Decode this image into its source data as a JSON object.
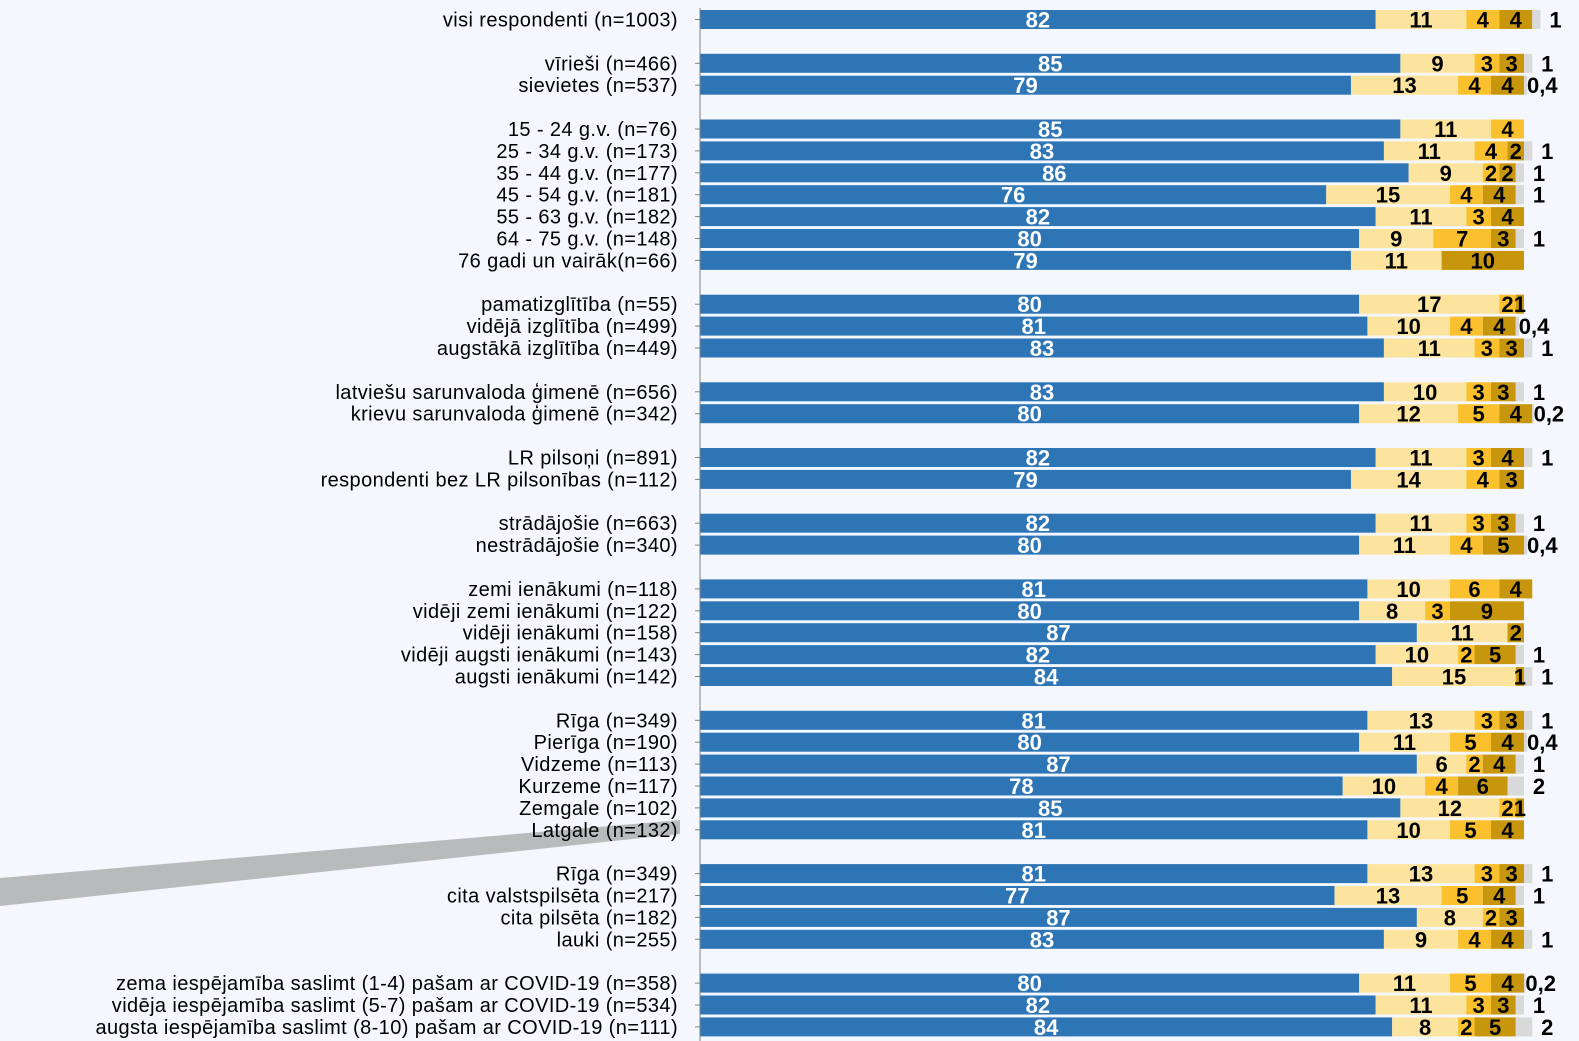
{
  "chart_data": {
    "type": "bar",
    "orientation": "horizontal",
    "stacked": true,
    "xlim": [
      0,
      100
    ],
    "grid": false,
    "legend": "none",
    "colors": [
      "#2e75b6",
      "#fde49e",
      "#fbc02d",
      "#c8960c",
      "#d9d9d9"
    ],
    "rows": [
      {
        "label": "visi respondenti (n=1003)",
        "group": 0,
        "values": [
          82,
          11,
          4,
          4,
          1
        ],
        "labels": [
          "82",
          "11",
          "4",
          "4",
          "1"
        ]
      },
      {
        "label": "vīrieši (n=466)",
        "group": 1,
        "values": [
          85,
          9,
          3,
          3,
          1
        ],
        "labels": [
          "85",
          "9",
          "3",
          "3",
          "1"
        ]
      },
      {
        "label": "sievietes (n=537)",
        "group": 1,
        "values": [
          79,
          13,
          4,
          4,
          0.4
        ],
        "labels": [
          "79",
          "13",
          "4",
          "4",
          "0,4"
        ]
      },
      {
        "label": "15 - 24 g.v. (n=76)",
        "group": 2,
        "values": [
          85,
          11,
          4,
          0,
          0
        ],
        "labels": [
          "85",
          "11",
          "4",
          "",
          ""
        ]
      },
      {
        "label": "25 - 34 g.v. (n=173)",
        "group": 2,
        "values": [
          83,
          11,
          4,
          2,
          1
        ],
        "labels": [
          "83",
          "11",
          "4",
          "2",
          "1"
        ]
      },
      {
        "label": "35 - 44 g.v. (n=177)",
        "group": 2,
        "values": [
          86,
          9,
          2,
          2,
          1
        ],
        "labels": [
          "86",
          "9",
          "2",
          "2",
          "1"
        ]
      },
      {
        "label": "45 - 54 g.v. (n=181)",
        "group": 2,
        "values": [
          76,
          15,
          4,
          4,
          1
        ],
        "labels": [
          "76",
          "15",
          "4",
          "4",
          "1"
        ]
      },
      {
        "label": "55 - 63 g.v. (n=182)",
        "group": 2,
        "values": [
          82,
          11,
          3,
          4,
          0
        ],
        "labels": [
          "82",
          "11",
          "3",
          "4",
          ""
        ]
      },
      {
        "label": "64 - 75 g.v. (n=148)",
        "group": 2,
        "values": [
          80,
          9,
          7,
          3,
          1
        ],
        "labels": [
          "80",
          "9",
          "7",
          "3",
          "1"
        ]
      },
      {
        "label": "76 gadi un vairāk(n=66)",
        "group": 2,
        "values": [
          79,
          11,
          0,
          10,
          0
        ],
        "labels": [
          "79",
          "11",
          "",
          "10",
          ""
        ]
      },
      {
        "label": "pamatizglītība (n=55)",
        "group": 3,
        "values": [
          80,
          17,
          2,
          1,
          0
        ],
        "labels": [
          "80",
          "17",
          "2",
          "1",
          ""
        ]
      },
      {
        "label": "vidējā izglītība (n=499)",
        "group": 3,
        "values": [
          81,
          10,
          4,
          4,
          0.4
        ],
        "labels": [
          "81",
          "10",
          "4",
          "4",
          "0,4"
        ]
      },
      {
        "label": "augstākā izglītība (n=449)",
        "group": 3,
        "values": [
          83,
          11,
          3,
          3,
          1
        ],
        "labels": [
          "83",
          "11",
          "3",
          "3",
          "1"
        ]
      },
      {
        "label": "latviešu sarunvaloda ģimenē (n=656)",
        "group": 4,
        "values": [
          83,
          10,
          3,
          3,
          1
        ],
        "labels": [
          "83",
          "10",
          "3",
          "3",
          "1"
        ]
      },
      {
        "label": "krievu sarunvaloda ģimenē (n=342)",
        "group": 4,
        "values": [
          80,
          12,
          5,
          4,
          0.2
        ],
        "labels": [
          "80",
          "12",
          "5",
          "4",
          "0,2"
        ]
      },
      {
        "label": "LR pilsoņi (n=891)",
        "group": 5,
        "values": [
          82,
          11,
          3,
          4,
          1
        ],
        "labels": [
          "82",
          "11",
          "3",
          "4",
          "1"
        ]
      },
      {
        "label": "respondenti bez LR pilsonības (n=112)",
        "group": 5,
        "values": [
          79,
          14,
          4,
          3,
          0
        ],
        "labels": [
          "79",
          "14",
          "4",
          "3",
          ""
        ]
      },
      {
        "label": "strādājošie (n=663)",
        "group": 6,
        "values": [
          82,
          11,
          3,
          3,
          1
        ],
        "labels": [
          "82",
          "11",
          "3",
          "3",
          "1"
        ]
      },
      {
        "label": "nestrādājošie (n=340)",
        "group": 6,
        "values": [
          80,
          11,
          4,
          5,
          0.4
        ],
        "labels": [
          "80",
          "11",
          "4",
          "5",
          "0,4"
        ]
      },
      {
        "label": "zemi ienākumi (n=118)",
        "group": 7,
        "values": [
          81,
          10,
          6,
          4,
          0
        ],
        "labels": [
          "81",
          "10",
          "6",
          "4",
          ""
        ]
      },
      {
        "label": "vidēji zemi ienākumi (n=122)",
        "group": 7,
        "values": [
          80,
          8,
          3,
          9,
          0
        ],
        "labels": [
          "80",
          "8",
          "3",
          "9",
          ""
        ]
      },
      {
        "label": "vidēji ienākumi (n=158)",
        "group": 7,
        "values": [
          87,
          11,
          0,
          2,
          0
        ],
        "labels": [
          "87",
          "11",
          "",
          "2",
          ""
        ]
      },
      {
        "label": "vidēji augsti ienākumi (n=143)",
        "group": 7,
        "values": [
          82,
          10,
          2,
          5,
          1
        ],
        "labels": [
          "82",
          "10",
          "2",
          "5",
          "1"
        ]
      },
      {
        "label": "augsti ienākumi (n=142)",
        "group": 7,
        "values": [
          84,
          15,
          0,
          1,
          1
        ],
        "labels": [
          "84",
          "15",
          "",
          "1",
          "1"
        ]
      },
      {
        "label": "Rīga (n=349)",
        "group": 8,
        "values": [
          81,
          13,
          3,
          3,
          1
        ],
        "labels": [
          "81",
          "13",
          "3",
          "3",
          "1"
        ]
      },
      {
        "label": "Pierīga (n=190)",
        "group": 8,
        "values": [
          80,
          11,
          5,
          4,
          0.4
        ],
        "labels": [
          "80",
          "11",
          "5",
          "4",
          "0,4"
        ]
      },
      {
        "label": "Vidzeme (n=113)",
        "group": 8,
        "values": [
          87,
          6,
          2,
          4,
          1
        ],
        "labels": [
          "87",
          "6",
          "2",
          "4",
          "1"
        ]
      },
      {
        "label": "Kurzeme (n=117)",
        "group": 8,
        "values": [
          78,
          10,
          4,
          6,
          2
        ],
        "labels": [
          "78",
          "10",
          "4",
          "6",
          "2"
        ]
      },
      {
        "label": "Zemgale (n=102)",
        "group": 8,
        "values": [
          85,
          12,
          2,
          1,
          0
        ],
        "labels": [
          "85",
          "12",
          "2",
          "1",
          ""
        ]
      },
      {
        "label": "Latgale (n=132)",
        "group": 8,
        "values": [
          81,
          10,
          5,
          4,
          0
        ],
        "labels": [
          "81",
          "10",
          "5",
          "4",
          ""
        ]
      },
      {
        "label": "Rīga (n=349)",
        "group": 9,
        "values": [
          81,
          13,
          3,
          3,
          1
        ],
        "labels": [
          "81",
          "13",
          "3",
          "3",
          "1"
        ]
      },
      {
        "label": "cita valstspilsēta (n=217)",
        "group": 9,
        "values": [
          77,
          13,
          5,
          4,
          1
        ],
        "labels": [
          "77",
          "13",
          "5",
          "4",
          "1"
        ]
      },
      {
        "label": "cita pilsēta (n=182)",
        "group": 9,
        "values": [
          87,
          8,
          2,
          3,
          0
        ],
        "labels": [
          "87",
          "8",
          "2",
          "3",
          ""
        ]
      },
      {
        "label": "lauki (n=255)",
        "group": 9,
        "values": [
          83,
          9,
          4,
          4,
          1
        ],
        "labels": [
          "83",
          "9",
          "4",
          "4",
          "1"
        ]
      },
      {
        "label": "zema iespējamība saslimt (1-4) pašam ar COVID-19 (n=358)",
        "group": 10,
        "values": [
          80,
          11,
          5,
          4,
          0.2
        ],
        "labels": [
          "80",
          "11",
          "5",
          "4",
          "0,2"
        ]
      },
      {
        "label": "vidēja iespējamība saslimt (5-7) pašam ar COVID-19 (n=534)",
        "group": 10,
        "values": [
          82,
          11,
          3,
          3,
          1
        ],
        "labels": [
          "82",
          "11",
          "3",
          "3",
          "1"
        ]
      },
      {
        "label": "augsta iespējamība saslimt (8-10) pašam ar COVID-19 (n=111)",
        "group": 10,
        "values": [
          84,
          8,
          2,
          5,
          2
        ],
        "labels": [
          "84",
          "8",
          "2",
          "5",
          "2"
        ]
      }
    ]
  }
}
